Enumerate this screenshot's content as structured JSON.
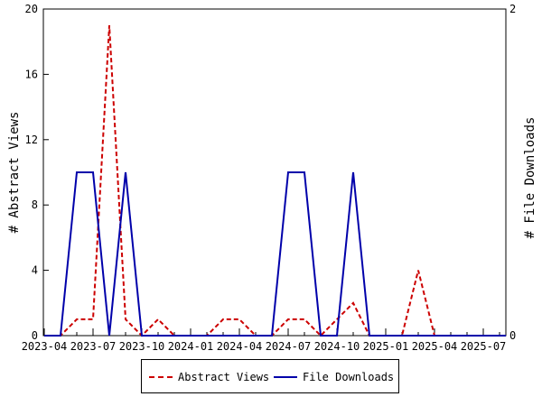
{
  "chart_data": {
    "type": "line",
    "x": [
      "2023-04",
      "2023-05",
      "2023-06",
      "2023-07",
      "2023-08",
      "2023-09",
      "2023-10",
      "2023-11",
      "2023-12",
      "2024-01",
      "2024-02",
      "2024-03",
      "2024-04",
      "2024-05",
      "2024-06",
      "2024-07",
      "2024-08",
      "2024-09",
      "2024-10",
      "2024-11",
      "2024-12",
      "2025-01",
      "2025-02",
      "2025-03",
      "2025-04",
      "2025-05",
      "2025-06",
      "2025-07",
      "2025-08",
      "2025-09"
    ],
    "x_tick_labels": [
      "2023-04",
      "2023-07",
      "2023-10",
      "2024-01",
      "2024-04",
      "2024-07",
      "2024-10",
      "2025-01",
      "2025-04",
      "2025-07"
    ],
    "series": [
      {
        "name": "Abstract Views",
        "axis": "left",
        "color": "#cc0000",
        "style": "dashed",
        "values": [
          0,
          0,
          1,
          1,
          19,
          1,
          0,
          1,
          0,
          0,
          0,
          1,
          1,
          0,
          0,
          1,
          1,
          0,
          1,
          2,
          0,
          0,
          0,
          4,
          0,
          0,
          0,
          0,
          0,
          0
        ]
      },
      {
        "name": "File Downloads",
        "axis": "right",
        "color": "#0000aa",
        "style": "solid",
        "values": [
          0,
          0,
          1,
          1,
          0,
          1,
          0,
          0,
          0,
          0,
          0,
          0,
          0,
          0,
          0,
          1,
          1,
          0,
          0,
          1,
          0,
          0,
          0,
          0,
          0,
          0,
          0,
          0,
          0,
          0
        ]
      }
    ],
    "ylabel_left": "# Abstract Views",
    "ylabel_right": "# File Downloads",
    "ylim_left": [
      0,
      20
    ],
    "yticks_left": [
      0,
      4,
      8,
      12,
      16,
      20
    ],
    "ylim_right": [
      0,
      2
    ],
    "yticks_right": [
      0,
      2
    ],
    "grid": false,
    "legend_placement": "bottom"
  },
  "legend": {
    "abstract_views": "Abstract Views",
    "file_downloads": "File Downloads"
  }
}
